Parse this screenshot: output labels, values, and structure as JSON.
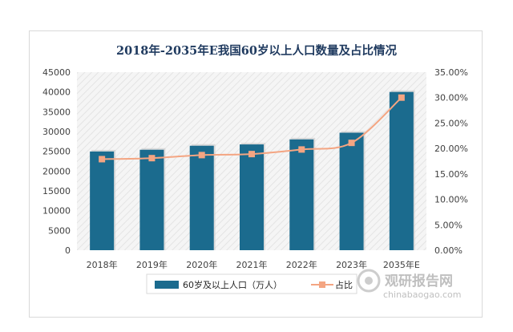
{
  "chart_data": {
    "type": "bar",
    "title": "2018年-2035年E我国60岁以上人口数量及占比情况",
    "categories": [
      "2018年",
      "2019年",
      "2020年",
      "2021年",
      "2022年",
      "2023年",
      "2035年E"
    ],
    "series": [
      {
        "name": "60岁及以上人口（万人）",
        "type": "bar",
        "axis": "left",
        "color": "#1b6b8e",
        "values": [
          24949,
          25388,
          26402,
          26736,
          28004,
          29697,
          40000
        ]
      },
      {
        "name": "占比",
        "type": "line",
        "axis": "right",
        "color": "#f4a582",
        "values": [
          17.9,
          18.1,
          18.7,
          18.9,
          19.8,
          21.1,
          30.0
        ]
      }
    ],
    "y_left": {
      "min": 0,
      "max": 45000,
      "step": 5000,
      "ticks": [
        "0",
        "5000",
        "10000",
        "15000",
        "20000",
        "25000",
        "30000",
        "35000",
        "40000",
        "45000"
      ]
    },
    "y_right": {
      "min": 0,
      "max": 35,
      "step": 5,
      "ticks": [
        "0.00%",
        "5.00%",
        "10.00%",
        "15.00%",
        "20.00%",
        "25.00%",
        "30.00%",
        "35.00%"
      ]
    },
    "legend_position": "bottom",
    "grid": false
  },
  "watermark": {
    "text_cn": "观研报告网",
    "text_en": "chinabaogao.com"
  }
}
